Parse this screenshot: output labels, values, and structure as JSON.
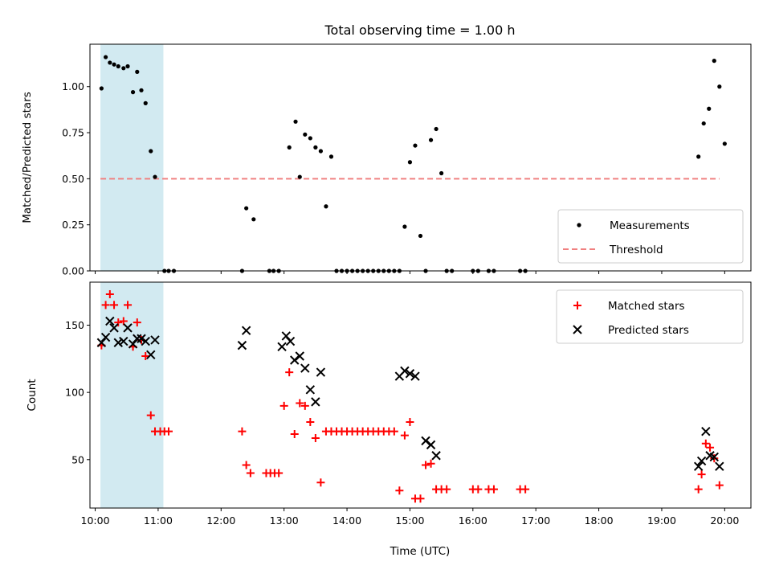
{
  "chart_data": {
    "title": "Total observing time = 1.00 h",
    "xlabel": "Time (UTC)",
    "colors": {
      "shade": "#add8e6",
      "threshold": "#f08080",
      "matched": "#ff0000",
      "predicted": "#000000",
      "measurements": "#000000"
    },
    "shaded_span": [
      "10:05",
      "11:05"
    ],
    "x_range": [
      "09:55",
      "20:25"
    ],
    "x_ticks": [
      "10:00",
      "11:00",
      "12:00",
      "13:00",
      "14:00",
      "15:00",
      "16:00",
      "17:00",
      "18:00",
      "19:00",
      "20:00"
    ],
    "panels": [
      {
        "type": "scatter",
        "ylabel": "Matched/Predicted stars",
        "ylim": [
          0,
          1.23
        ],
        "y_ticks": [
          "0.00",
          "0.25",
          "0.50",
          "0.75",
          "1.00"
        ],
        "legend": {
          "placement": "lower right",
          "entries": [
            "Measurements",
            "Threshold"
          ]
        },
        "threshold": {
          "name": "Threshold",
          "value": 0.5,
          "x_from": "10:05",
          "x_to": "19:55"
        },
        "series": [
          {
            "name": "Measurements",
            "marker": "dot",
            "points": [
              [
                "10:06",
                0.99
              ],
              [
                "10:10",
                1.16
              ],
              [
                "10:14",
                1.13
              ],
              [
                "10:18",
                1.12
              ],
              [
                "10:22",
                1.11
              ],
              [
                "10:27",
                1.1
              ],
              [
                "10:31",
                1.11
              ],
              [
                "10:36",
                0.97
              ],
              [
                "10:40",
                1.08
              ],
              [
                "10:44",
                0.98
              ],
              [
                "10:48",
                0.91
              ],
              [
                "10:53",
                0.65
              ],
              [
                "10:57",
                0.51
              ],
              [
                "11:06",
                0.0
              ],
              [
                "11:10",
                0.0
              ],
              [
                "11:15",
                0.0
              ],
              [
                "12:20",
                0.0
              ],
              [
                "12:24",
                0.34
              ],
              [
                "12:31",
                0.28
              ],
              [
                "12:46",
                0.0
              ],
              [
                "12:50",
                0.0
              ],
              [
                "12:55",
                0.0
              ],
              [
                "13:05",
                0.67
              ],
              [
                "13:11",
                0.81
              ],
              [
                "13:15",
                0.51
              ],
              [
                "13:20",
                0.74
              ],
              [
                "13:25",
                0.72
              ],
              [
                "13:30",
                0.67
              ],
              [
                "13:35",
                0.65
              ],
              [
                "13:40",
                0.35
              ],
              [
                "13:45",
                0.62
              ],
              [
                "13:50",
                0.0
              ],
              [
                "13:55",
                0.0
              ],
              [
                "14:00",
                0.0
              ],
              [
                "14:05",
                0.0
              ],
              [
                "14:10",
                0.0
              ],
              [
                "14:15",
                0.0
              ],
              [
                "14:20",
                0.0
              ],
              [
                "14:25",
                0.0
              ],
              [
                "14:30",
                0.0
              ],
              [
                "14:35",
                0.0
              ],
              [
                "14:40",
                0.0
              ],
              [
                "14:45",
                0.0
              ],
              [
                "14:50",
                0.0
              ],
              [
                "14:55",
                0.24
              ],
              [
                "15:00",
                0.59
              ],
              [
                "15:05",
                0.68
              ],
              [
                "15:10",
                0.19
              ],
              [
                "15:15",
                0.0
              ],
              [
                "15:20",
                0.71
              ],
              [
                "15:25",
                0.77
              ],
              [
                "15:30",
                0.53
              ],
              [
                "15:35",
                0.0
              ],
              [
                "15:40",
                0.0
              ],
              [
                "16:00",
                0.0
              ],
              [
                "16:05",
                0.0
              ],
              [
                "16:15",
                0.0
              ],
              [
                "16:20",
                0.0
              ],
              [
                "16:45",
                0.0
              ],
              [
                "16:50",
                0.0
              ],
              [
                "19:35",
                0.62
              ],
              [
                "19:40",
                0.8
              ],
              [
                "19:45",
                0.88
              ],
              [
                "19:50",
                1.14
              ],
              [
                "19:55",
                1.0
              ],
              [
                "20:00",
                0.69
              ]
            ]
          }
        ]
      },
      {
        "type": "scatter",
        "ylabel": "Count",
        "ylim": [
          14,
          182
        ],
        "y_ticks": [
          "50",
          "100",
          "150"
        ],
        "legend": {
          "placement": "upper right",
          "entries": [
            "Matched stars",
            "Predicted stars"
          ]
        },
        "series": [
          {
            "name": "Matched stars",
            "marker": "plus",
            "points": [
              [
                "10:06",
                135
              ],
              [
                "10:10",
                165
              ],
              [
                "10:14",
                173
              ],
              [
                "10:18",
                165
              ],
              [
                "10:22",
                152
              ],
              [
                "10:27",
                153
              ],
              [
                "10:31",
                165
              ],
              [
                "10:36",
                134
              ],
              [
                "10:40",
                152
              ],
              [
                "10:44",
                139
              ],
              [
                "10:48",
                127
              ],
              [
                "10:53",
                83
              ],
              [
                "10:57",
                71
              ],
              [
                "11:02",
                71
              ],
              [
                "11:06",
                71
              ],
              [
                "11:10",
                71
              ],
              [
                "12:20",
                71
              ],
              [
                "12:24",
                46
              ],
              [
                "12:28",
                40
              ],
              [
                "12:43",
                40
              ],
              [
                "12:47",
                40
              ],
              [
                "12:51",
                40
              ],
              [
                "12:55",
                40
              ],
              [
                "13:00",
                90
              ],
              [
                "13:05",
                115
              ],
              [
                "13:10",
                69
              ],
              [
                "13:15",
                92
              ],
              [
                "13:20",
                90
              ],
              [
                "13:25",
                78
              ],
              [
                "13:30",
                66
              ],
              [
                "13:35",
                33
              ],
              [
                "13:40",
                71
              ],
              [
                "13:45",
                71
              ],
              [
                "13:50",
                71
              ],
              [
                "13:55",
                71
              ],
              [
                "14:00",
                71
              ],
              [
                "14:05",
                71
              ],
              [
                "14:10",
                71
              ],
              [
                "14:15",
                71
              ],
              [
                "14:20",
                71
              ],
              [
                "14:25",
                71
              ],
              [
                "14:30",
                71
              ],
              [
                "14:35",
                71
              ],
              [
                "14:40",
                71
              ],
              [
                "14:45",
                71
              ],
              [
                "14:50",
                27
              ],
              [
                "14:55",
                68
              ],
              [
                "15:00",
                78
              ],
              [
                "15:05",
                21
              ],
              [
                "15:10",
                21
              ],
              [
                "15:15",
                46
              ],
              [
                "15:20",
                47
              ],
              [
                "15:25",
                28
              ],
              [
                "15:30",
                28
              ],
              [
                "15:35",
                28
              ],
              [
                "16:00",
                28
              ],
              [
                "16:05",
                28
              ],
              [
                "16:15",
                28
              ],
              [
                "16:20",
                28
              ],
              [
                "16:45",
                28
              ],
              [
                "16:50",
                28
              ],
              [
                "19:35",
                28
              ],
              [
                "19:38",
                39
              ],
              [
                "19:42",
                62
              ],
              [
                "19:46",
                59
              ],
              [
                "19:50",
                51
              ],
              [
                "19:55",
                31
              ]
            ]
          },
          {
            "name": "Predicted stars",
            "marker": "cross",
            "points": [
              [
                "10:06",
                137
              ],
              [
                "10:10",
                141
              ],
              [
                "10:14",
                153
              ],
              [
                "10:18",
                148
              ],
              [
                "10:22",
                137
              ],
              [
                "10:27",
                138
              ],
              [
                "10:31",
                148
              ],
              [
                "10:36",
                136
              ],
              [
                "10:40",
                140
              ],
              [
                "10:44",
                140
              ],
              [
                "10:48",
                138
              ],
              [
                "10:53",
                128
              ],
              [
                "10:57",
                139
              ],
              [
                "12:20",
                135
              ],
              [
                "12:24",
                146
              ],
              [
                "12:58",
                134
              ],
              [
                "13:02",
                142
              ],
              [
                "13:06",
                138
              ],
              [
                "13:10",
                124
              ],
              [
                "13:15",
                127
              ],
              [
                "13:20",
                118
              ],
              [
                "13:25",
                102
              ],
              [
                "13:30",
                93
              ],
              [
                "13:35",
                115
              ],
              [
                "14:50",
                112
              ],
              [
                "14:55",
                116
              ],
              [
                "15:00",
                114
              ],
              [
                "15:05",
                112
              ],
              [
                "15:15",
                64
              ],
              [
                "15:20",
                61
              ],
              [
                "15:25",
                53
              ],
              [
                "19:35",
                45
              ],
              [
                "19:38",
                49
              ],
              [
                "19:42",
                71
              ],
              [
                "19:46",
                53
              ],
              [
                "19:50",
                52
              ],
              [
                "19:55",
                45
              ]
            ]
          }
        ]
      }
    ]
  }
}
